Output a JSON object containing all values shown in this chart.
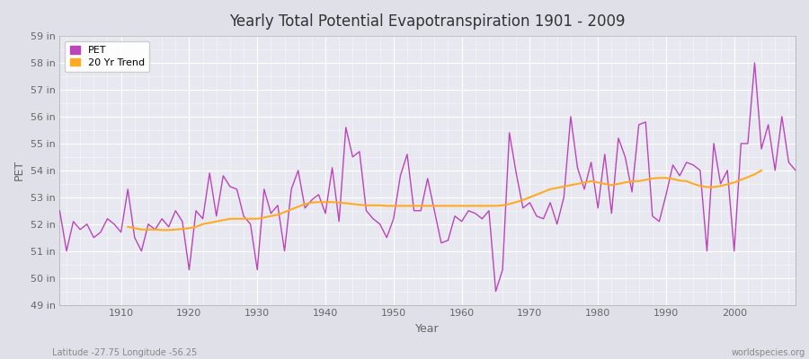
{
  "title": "Yearly Total Potential Evapotranspiration 1901 - 2009",
  "xlabel": "Year",
  "ylabel": "PET",
  "footnote_left": "Latitude -27.75 Longitude -56.25",
  "footnote_right": "worldspecies.org",
  "ylim": [
    49,
    59
  ],
  "ytick_labels": [
    "49 in",
    "50 in",
    "51 in",
    "52 in",
    "53 in",
    "54 in",
    "55 in",
    "56 in",
    "57 in",
    "58 in",
    "59 in"
  ],
  "ytick_values": [
    49,
    50,
    51,
    52,
    53,
    54,
    55,
    56,
    57,
    58,
    59
  ],
  "xlim": [
    1901,
    2009
  ],
  "xtick_values": [
    1910,
    1920,
    1930,
    1940,
    1950,
    1960,
    1970,
    1980,
    1990,
    2000
  ],
  "pet_color": "#bb44bb",
  "trend_color": "#ffaa22",
  "fig_bg_color": "#e0e0e8",
  "plot_bg_color": "#e8e8f0",
  "grid_color": "#ffffff",
  "legend_labels": [
    "PET",
    "20 Yr Trend"
  ],
  "years": [
    1901,
    1902,
    1903,
    1904,
    1905,
    1906,
    1907,
    1908,
    1909,
    1910,
    1911,
    1912,
    1913,
    1914,
    1915,
    1916,
    1917,
    1918,
    1919,
    1920,
    1921,
    1922,
    1923,
    1924,
    1925,
    1926,
    1927,
    1928,
    1929,
    1930,
    1931,
    1932,
    1933,
    1934,
    1935,
    1936,
    1937,
    1938,
    1939,
    1940,
    1941,
    1942,
    1943,
    1944,
    1945,
    1946,
    1947,
    1948,
    1949,
    1950,
    1951,
    1952,
    1953,
    1954,
    1955,
    1956,
    1957,
    1958,
    1959,
    1960,
    1961,
    1962,
    1963,
    1964,
    1965,
    1966,
    1967,
    1968,
    1969,
    1970,
    1971,
    1972,
    1973,
    1974,
    1975,
    1976,
    1977,
    1978,
    1979,
    1980,
    1981,
    1982,
    1983,
    1984,
    1985,
    1986,
    1987,
    1988,
    1989,
    1990,
    1991,
    1992,
    1993,
    1994,
    1995,
    1996,
    1997,
    1998,
    1999,
    2000,
    2001,
    2002,
    2003,
    2004,
    2005,
    2006,
    2007,
    2008,
    2009
  ],
  "pet_values": [
    52.5,
    51.0,
    52.1,
    51.8,
    52.0,
    51.5,
    51.7,
    52.2,
    52.0,
    51.7,
    53.3,
    51.5,
    51.0,
    52.0,
    51.8,
    52.2,
    51.9,
    52.5,
    52.1,
    50.3,
    52.5,
    52.2,
    53.9,
    52.3,
    53.8,
    53.4,
    53.3,
    52.3,
    52.0,
    50.3,
    53.3,
    52.4,
    52.7,
    51.0,
    53.3,
    54.0,
    52.6,
    52.9,
    53.1,
    52.4,
    54.1,
    52.1,
    55.6,
    54.5,
    54.7,
    52.5,
    52.2,
    52.0,
    51.5,
    52.2,
    53.8,
    54.6,
    52.5,
    52.5,
    53.7,
    52.5,
    51.3,
    51.4,
    52.3,
    52.1,
    52.5,
    52.4,
    52.2,
    52.5,
    49.5,
    50.3,
    55.4,
    53.9,
    52.6,
    52.8,
    52.3,
    52.2,
    52.8,
    52.0,
    53.0,
    56.0,
    54.1,
    53.3,
    54.3,
    52.6,
    54.6,
    52.4,
    55.2,
    54.5,
    53.2,
    55.7,
    55.8,
    52.3,
    52.1,
    53.1,
    54.2,
    53.8,
    54.3,
    54.2,
    54.0,
    51.0,
    55.0,
    53.5,
    54.0,
    51.0,
    55.0,
    55.0,
    58.0,
    54.8,
    55.7,
    54.0,
    56.0,
    54.3,
    54.0
  ],
  "trend_values": [
    null,
    null,
    null,
    null,
    null,
    null,
    null,
    null,
    null,
    null,
    51.9,
    51.85,
    51.8,
    51.8,
    51.8,
    51.78,
    51.78,
    51.8,
    51.82,
    51.85,
    51.9,
    52.0,
    52.05,
    52.1,
    52.15,
    52.2,
    52.2,
    52.2,
    52.2,
    52.2,
    52.25,
    52.3,
    52.35,
    52.45,
    52.55,
    52.65,
    52.75,
    52.8,
    52.82,
    52.82,
    52.82,
    52.8,
    52.78,
    52.75,
    52.72,
    52.7,
    52.7,
    52.7,
    52.68,
    52.68,
    52.68,
    52.68,
    52.68,
    52.68,
    52.68,
    52.68,
    52.68,
    52.68,
    52.68,
    52.68,
    52.68,
    52.68,
    52.68,
    52.68,
    52.68,
    52.7,
    52.75,
    52.82,
    52.9,
    53.0,
    53.1,
    53.2,
    53.3,
    53.35,
    53.4,
    53.45,
    53.5,
    53.55,
    53.6,
    53.55,
    53.5,
    53.45,
    53.5,
    53.55,
    53.6,
    53.6,
    53.65,
    53.7,
    53.72,
    53.72,
    53.68,
    53.62,
    53.6,
    53.5,
    53.42,
    53.38,
    53.38,
    53.42,
    53.48,
    53.55,
    53.65,
    53.75,
    53.85,
    54.0,
    null,
    null,
    null,
    null,
    null
  ]
}
